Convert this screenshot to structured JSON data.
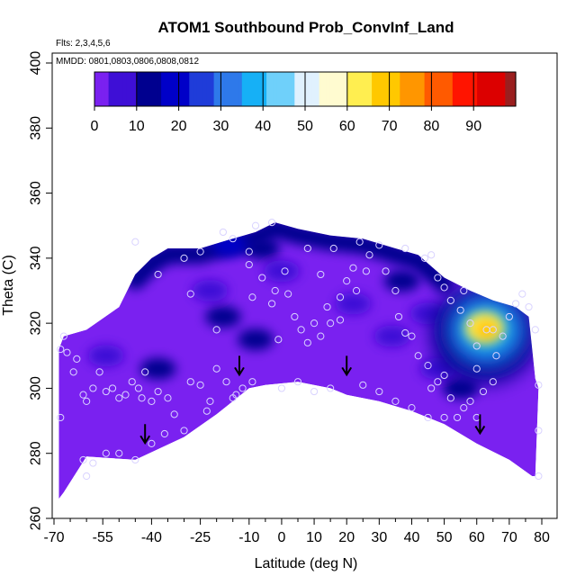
{
  "chart_data": {
    "type": "heatmap",
    "title": "ATOM1 Southbound Prob_ConvInf_Land",
    "subtitle_flights": "Flts: 2,3,4,5,6",
    "subtitle_dates": "MMDD: 0801,0803,0806,0808,0812",
    "xlabel": "Latitude (deg N)",
    "ylabel": "Theta (C)",
    "xlim": [
      -70,
      85
    ],
    "ylim": [
      260,
      405
    ],
    "x_tick_labels": [
      "-70",
      "-55",
      "-40",
      "-25",
      "-10",
      "0",
      "10",
      "20",
      "30",
      "40",
      "50",
      "60",
      "70",
      "80"
    ],
    "x_tick_values": [
      -70,
      -55,
      -40,
      -25,
      -10,
      0,
      10,
      20,
      30,
      40,
      50,
      60,
      70,
      80
    ],
    "x_minor_ticks": [
      -65,
      -60,
      -50,
      -45,
      -35,
      -30,
      -20,
      -15,
      -5,
      5,
      15,
      25,
      35,
      45,
      55,
      65,
      75
    ],
    "y_tick_labels": [
      "260",
      "280",
      "300",
      "320",
      "340",
      "360",
      "380",
      "400"
    ],
    "y_tick_values": [
      260,
      280,
      300,
      320,
      340,
      360,
      380,
      400
    ],
    "colorbar": {
      "tick_labels": [
        "0",
        "10",
        "20",
        "30",
        "40",
        "50",
        "60",
        "70",
        "80",
        "90"
      ],
      "tick_values": [
        0,
        10,
        20,
        30,
        40,
        50,
        60,
        70,
        80,
        90
      ],
      "range": [
        0,
        100
      ],
      "colors": [
        "#7a21f0",
        "#3e0fd6",
        "#00008f",
        "#0000c8",
        "#1f3cd9",
        "#2e79ea",
        "#16b0f6",
        "#6fd0fa",
        "#e0f1fe",
        "#fffbd0",
        "#ffee50",
        "#ffc800",
        "#ff9600",
        "#ff5a00",
        "#ff1400",
        "#dc0000",
        "#9a1f1f"
      ]
    },
    "coverage_boundary": {
      "bottom": [
        [
          -68.5,
          266
        ],
        [
          -67,
          268
        ],
        [
          -60,
          279
        ],
        [
          -45,
          278
        ],
        [
          -30,
          285
        ],
        [
          -20,
          292
        ],
        [
          -10,
          300
        ],
        [
          -5,
          301
        ],
        [
          5,
          302
        ],
        [
          15,
          300
        ],
        [
          20,
          298
        ],
        [
          30,
          296
        ],
        [
          40,
          293
        ],
        [
          50,
          289
        ],
        [
          60,
          283
        ],
        [
          70,
          278
        ],
        [
          77,
          273
        ],
        [
          78,
          273
        ]
      ],
      "top": [
        [
          -68.5,
          312
        ],
        [
          -67,
          316
        ],
        [
          -60,
          318
        ],
        [
          -50,
          325
        ],
        [
          -45,
          335
        ],
        [
          -40,
          340
        ],
        [
          -35,
          343
        ],
        [
          -25,
          343
        ],
        [
          -15,
          346
        ],
        [
          -8,
          348
        ],
        [
          -2,
          351
        ],
        [
          5,
          349
        ],
        [
          15,
          347
        ],
        [
          25,
          346
        ],
        [
          35,
          343
        ],
        [
          42,
          341
        ],
        [
          50,
          334
        ],
        [
          58,
          330
        ],
        [
          65,
          327
        ],
        [
          72,
          325
        ],
        [
          76,
          322
        ],
        [
          78,
          303
        ],
        [
          79,
          300
        ]
      ]
    },
    "blue_features": [
      {
        "x": -16,
        "y": 344,
        "value": 20
      },
      {
        "x": -6,
        "y": 343,
        "value": 15
      },
      {
        "x": -22,
        "y": 330,
        "value": 8
      },
      {
        "x": -18,
        "y": 322,
        "value": 10
      },
      {
        "x": -8,
        "y": 315,
        "value": 12
      },
      {
        "x": -38,
        "y": 306,
        "value": 10
      },
      {
        "x": -54,
        "y": 310,
        "value": 8
      },
      {
        "x": 0,
        "y": 336,
        "value": 8
      },
      {
        "x": 22,
        "y": 326,
        "value": 8
      },
      {
        "x": 37,
        "y": 333,
        "value": 10
      },
      {
        "x": 45,
        "y": 323,
        "value": 8
      },
      {
        "x": 34,
        "y": 316,
        "value": 8
      },
      {
        "x": 48,
        "y": 306,
        "value": 8
      },
      {
        "x": 55,
        "y": 300,
        "value": 15
      }
    ],
    "convective_max": {
      "x": 63,
      "y": 318,
      "value": 70
    },
    "sample_points": [
      [
        -68,
        312
      ],
      [
        -67,
        316
      ],
      [
        -66,
        311
      ],
      [
        -63,
        309
      ],
      [
        -64,
        305
      ],
      [
        -68,
        291
      ],
      [
        -61,
        298
      ],
      [
        -60,
        296
      ],
      [
        -58,
        300
      ],
      [
        -56,
        305
      ],
      [
        -54,
        299
      ],
      [
        -52,
        300
      ],
      [
        -50,
        297
      ],
      [
        -48,
        298
      ],
      [
        -46,
        302
      ],
      [
        -44,
        300
      ],
      [
        -43,
        297
      ],
      [
        -42,
        305
      ],
      [
        -40,
        296
      ],
      [
        -38,
        299
      ],
      [
        -35,
        297
      ],
      [
        -33,
        292
      ],
      [
        -30,
        287
      ],
      [
        -28,
        302
      ],
      [
        -25,
        301
      ],
      [
        -22,
        296
      ],
      [
        -20,
        306
      ],
      [
        -17,
        302
      ],
      [
        -14,
        298
      ],
      [
        -12,
        300
      ],
      [
        -9,
        302
      ],
      [
        -58,
        277
      ],
      [
        -54,
        280
      ],
      [
        -50,
        280
      ],
      [
        -45,
        278
      ],
      [
        -40,
        283
      ],
      [
        -36,
        286
      ],
      [
        -23,
        293
      ],
      [
        -15,
        297
      ],
      [
        -45,
        345
      ],
      [
        -38,
        335
      ],
      [
        -30,
        340
      ],
      [
        -25,
        342
      ],
      [
        -18,
        348
      ],
      [
        -15,
        346
      ],
      [
        -10,
        342
      ],
      [
        -8,
        350
      ],
      [
        -3,
        351
      ],
      [
        -6,
        334
      ],
      [
        -9,
        328
      ],
      [
        -2,
        330
      ],
      [
        1,
        336
      ],
      [
        2,
        329
      ],
      [
        4,
        322
      ],
      [
        6,
        318
      ],
      [
        8,
        314
      ],
      [
        10,
        320
      ],
      [
        12,
        316
      ],
      [
        14,
        325
      ],
      [
        15,
        320
      ],
      [
        18,
        328
      ],
      [
        18,
        321
      ],
      [
        20,
        333
      ],
      [
        22,
        337
      ],
      [
        23,
        330
      ],
      [
        26,
        336
      ],
      [
        27,
        341
      ],
      [
        30,
        344
      ],
      [
        32,
        336
      ],
      [
        35,
        330
      ],
      [
        36,
        322
      ],
      [
        38,
        317
      ],
      [
        40,
        316
      ],
      [
        42,
        310
      ],
      [
        45,
        307
      ],
      [
        46,
        300
      ],
      [
        48,
        302
      ],
      [
        50,
        304
      ],
      [
        52,
        297
      ],
      [
        54,
        291
      ],
      [
        56,
        294
      ],
      [
        58,
        296
      ],
      [
        60,
        291
      ],
      [
        62,
        299
      ],
      [
        66,
        310
      ],
      [
        68,
        316
      ],
      [
        70,
        322
      ],
      [
        72,
        326
      ],
      [
        74,
        329
      ],
      [
        76,
        325
      ],
      [
        78,
        318
      ],
      [
        79,
        301
      ],
      [
        79,
        287
      ],
      [
        79,
        273
      ],
      [
        -61,
        278
      ],
      [
        -60,
        273
      ],
      [
        -10,
        338
      ],
      [
        -3,
        326
      ],
      [
        8,
        343
      ],
      [
        12,
        335
      ],
      [
        16,
        343
      ],
      [
        24,
        345
      ],
      [
        38,
        343
      ],
      [
        44,
        340
      ],
      [
        46,
        341
      ],
      [
        48,
        334
      ],
      [
        50,
        331
      ],
      [
        52,
        327
      ],
      [
        55,
        324
      ],
      [
        56,
        330
      ],
      [
        58,
        320
      ],
      [
        60,
        313
      ],
      [
        63,
        318
      ],
      [
        65,
        318
      ],
      [
        60,
        306
      ],
      [
        65,
        302
      ],
      [
        25,
        301
      ],
      [
        30,
        299
      ],
      [
        35,
        296
      ],
      [
        40,
        294
      ],
      [
        45,
        291
      ],
      [
        50,
        291
      ],
      [
        0,
        300
      ],
      [
        5,
        302
      ],
      [
        10,
        299
      ],
      [
        15,
        300
      ],
      [
        -1,
        315
      ],
      [
        -20,
        318
      ],
      [
        -28,
        329
      ]
    ],
    "arrows": [
      [
        -42,
        284
      ],
      [
        -13,
        305
      ],
      [
        20,
        305
      ],
      [
        61,
        287
      ]
    ]
  }
}
